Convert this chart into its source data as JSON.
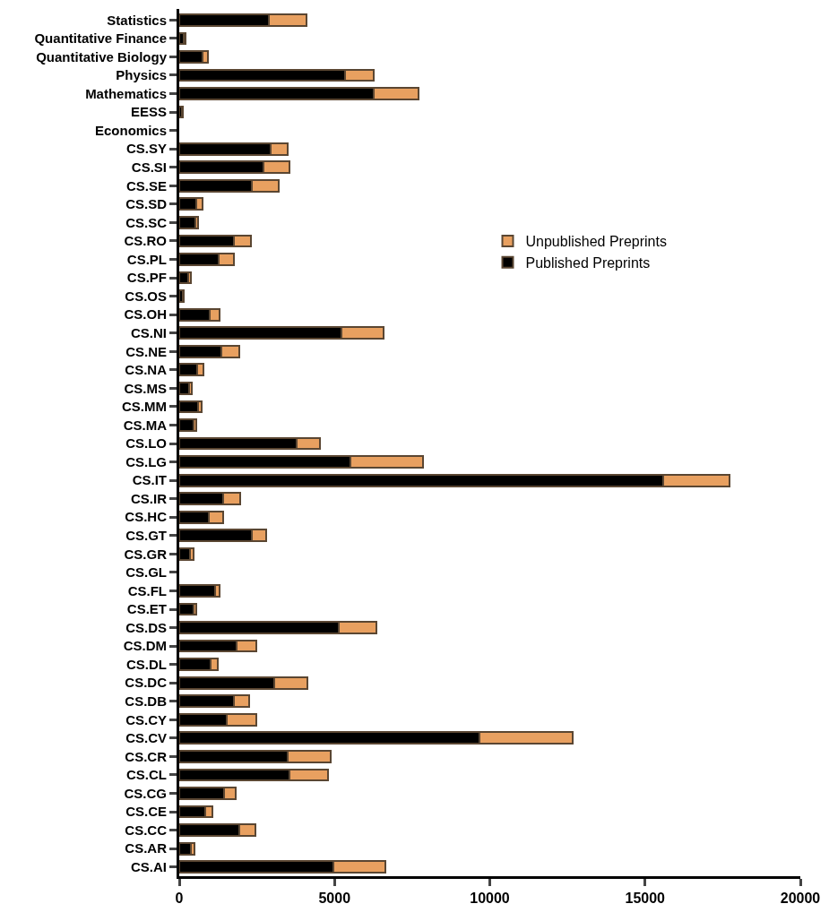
{
  "chart_data": {
    "type": "bar",
    "orientation": "horizontal",
    "stacked": true,
    "legend": "right",
    "categories": [
      "Statistics",
      "Quantitative Finance",
      "Quantitative Biology",
      "Physics",
      "Mathematics",
      "EESS",
      "Economics",
      "CS.SY",
      "CS.SI",
      "CS.SE",
      "CS.SD",
      "CS.SC",
      "CS.RO",
      "CS.PL",
      "CS.PF",
      "CS.OS",
      "CS.OH",
      "CS.NI",
      "CS.NE",
      "CS.NA",
      "CS.MS",
      "CS.MM",
      "CS.MA",
      "CS.LO",
      "CS.LG",
      "CS.IT",
      "CS.IR",
      "CS.HC",
      "CS.GT",
      "CS.GR",
      "CS.GL",
      "CS.FL",
      "CS.ET",
      "CS.DS",
      "CS.DM",
      "CS.DL",
      "CS.DC",
      "CS.DB",
      "CS.CY",
      "CS.CV",
      "CS.CR",
      "CS.CL",
      "CS.CG",
      "CS.CE",
      "CS.CC",
      "CS.AR",
      "CS.AI"
    ],
    "series": [
      {
        "name": "Published Preprints",
        "color": "#000000",
        "values": [
          2900,
          150,
          750,
          5350,
          6250,
          100,
          0,
          2940,
          2700,
          2350,
          550,
          520,
          1770,
          1280,
          290,
          120,
          990,
          5230,
          1370,
          580,
          320,
          610,
          470,
          3780,
          5520,
          15580,
          1400,
          960,
          2350,
          350,
          0,
          1160,
          470,
          5150,
          1860,
          1020,
          3050,
          1770,
          1540,
          9680,
          3490,
          3550,
          1450,
          840,
          1920,
          380,
          4970
        ]
      },
      {
        "name": "Unpublished Preprints",
        "color": "#e8a060",
        "values": [
          1200,
          50,
          180,
          900,
          1450,
          20,
          0,
          550,
          850,
          850,
          200,
          90,
          530,
          490,
          90,
          30,
          320,
          1340,
          550,
          210,
          90,
          120,
          80,
          750,
          2330,
          2150,
          550,
          440,
          440,
          120,
          0,
          150,
          80,
          1190,
          610,
          230,
          1080,
          470,
          930,
          2990,
          1390,
          1250,
          380,
          240,
          520,
          110,
          1660
        ]
      }
    ],
    "xlim": [
      0,
      20000
    ],
    "xticks": [
      0,
      5000,
      10000,
      15000,
      20000
    ]
  }
}
